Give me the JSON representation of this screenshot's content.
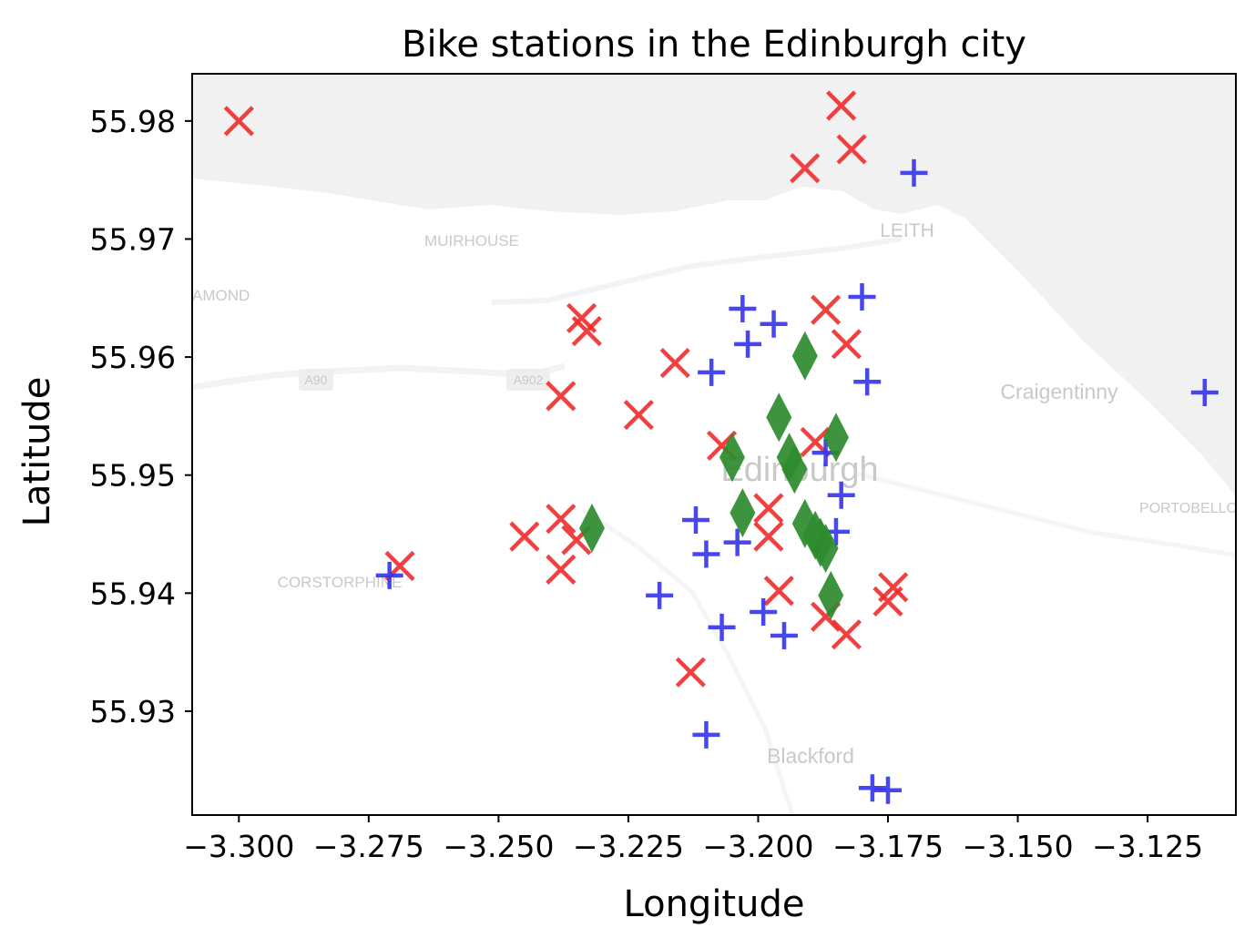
{
  "chart_data": {
    "type": "scatter",
    "title": "Bike stations in the Edinburgh city",
    "xlabel": "Longitude",
    "ylabel": "Latitude",
    "xlim": [
      -3.309,
      -3.108
    ],
    "ylim": [
      55.9212,
      55.984
    ],
    "xticks": [
      -3.3,
      -3.275,
      -3.25,
      -3.225,
      -3.2,
      -3.175,
      -3.15,
      -3.125
    ],
    "xtick_labels": [
      "−3.300",
      "−3.275",
      "−3.250",
      "−3.225",
      "−3.200",
      "−3.175",
      "−3.150",
      "−3.125"
    ],
    "yticks": [
      55.93,
      55.94,
      55.95,
      55.96,
      55.97,
      55.98
    ],
    "ytick_labels": [
      "55.93",
      "55.94",
      "55.95",
      "55.96",
      "55.97",
      "55.98"
    ],
    "grid": false,
    "background_map": {
      "colors": {
        "land": "#ffffff",
        "sea": "#f1f1f1",
        "road": "#f6f6f6",
        "label": "#c9c9c9"
      },
      "labels": [
        "MUIRHOUSE",
        "LEITH",
        "AMOND",
        "A90",
        "A902",
        "Craigentinny",
        "Edinburgh",
        "PORTOBELLO",
        "CORSTORPHINE",
        "Blackford"
      ]
    },
    "series": [
      {
        "marker": "x",
        "color": "#ee2b2b",
        "points": [
          {
            "x": -3.3,
            "y": 55.98
          },
          {
            "x": -3.184,
            "y": 55.9813
          },
          {
            "x": -3.182,
            "y": 55.9776
          },
          {
            "x": -3.191,
            "y": 55.976
          },
          {
            "x": -3.234,
            "y": 55.9633
          },
          {
            "x": -3.233,
            "y": 55.9622
          },
          {
            "x": -3.187,
            "y": 55.964
          },
          {
            "x": -3.183,
            "y": 55.9611
          },
          {
            "x": -3.216,
            "y": 55.9595
          },
          {
            "x": -3.238,
            "y": 55.9567
          },
          {
            "x": -3.223,
            "y": 55.9551
          },
          {
            "x": -3.207,
            "y": 55.9525
          },
          {
            "x": -3.189,
            "y": 55.9528
          },
          {
            "x": -3.238,
            "y": 55.9463
          },
          {
            "x": -3.235,
            "y": 55.9445
          },
          {
            "x": -3.245,
            "y": 55.9448
          },
          {
            "x": -3.238,
            "y": 55.942
          },
          {
            "x": -3.269,
            "y": 55.9423
          },
          {
            "x": -3.198,
            "y": 55.9472
          },
          {
            "x": -3.198,
            "y": 55.9448
          },
          {
            "x": -3.196,
            "y": 55.9402
          },
          {
            "x": -3.174,
            "y": 55.9405
          },
          {
            "x": -3.175,
            "y": 55.9393
          },
          {
            "x": -3.187,
            "y": 55.938
          },
          {
            "x": -3.183,
            "y": 55.9365
          },
          {
            "x": -3.213,
            "y": 55.9333
          }
        ]
      },
      {
        "marker": "+",
        "color": "#3333ee",
        "points": [
          {
            "x": -3.17,
            "y": 55.9756
          },
          {
            "x": -3.18,
            "y": 55.9651
          },
          {
            "x": -3.203,
            "y": 55.9641
          },
          {
            "x": -3.197,
            "y": 55.9628
          },
          {
            "x": -3.202,
            "y": 55.9611
          },
          {
            "x": -3.209,
            "y": 55.9587
          },
          {
            "x": -3.179,
            "y": 55.9579
          },
          {
            "x": -3.114,
            "y": 55.957
          },
          {
            "x": -3.187,
            "y": 55.9519
          },
          {
            "x": -3.184,
            "y": 55.9483
          },
          {
            "x": -3.212,
            "y": 55.9462
          },
          {
            "x": -3.185,
            "y": 55.9452
          },
          {
            "x": -3.204,
            "y": 55.9443
          },
          {
            "x": -3.21,
            "y": 55.9433
          },
          {
            "x": -3.271,
            "y": 55.9415
          },
          {
            "x": -3.219,
            "y": 55.9398
          },
          {
            "x": -3.199,
            "y": 55.9384
          },
          {
            "x": -3.207,
            "y": 55.9371
          },
          {
            "x": -3.195,
            "y": 55.9364
          },
          {
            "x": -3.21,
            "y": 55.928
          },
          {
            "x": -3.178,
            "y": 55.9235
          },
          {
            "x": -3.175,
            "y": 55.9233
          }
        ]
      },
      {
        "marker": "d",
        "color": "#2e8b2e",
        "points": [
          {
            "x": -3.232,
            "y": 55.9455
          },
          {
            "x": -3.191,
            "y": 55.9601
          },
          {
            "x": -3.196,
            "y": 55.9549
          },
          {
            "x": -3.185,
            "y": 55.9532
          },
          {
            "x": -3.205,
            "y": 55.9515
          },
          {
            "x": -3.194,
            "y": 55.9515
          },
          {
            "x": -3.193,
            "y": 55.9505
          },
          {
            "x": -3.203,
            "y": 55.9468
          },
          {
            "x": -3.191,
            "y": 55.9459
          },
          {
            "x": -3.189,
            "y": 55.9449
          },
          {
            "x": -3.188,
            "y": 55.9443
          },
          {
            "x": -3.187,
            "y": 55.9438
          },
          {
            "x": -3.186,
            "y": 55.9398
          }
        ]
      }
    ]
  }
}
